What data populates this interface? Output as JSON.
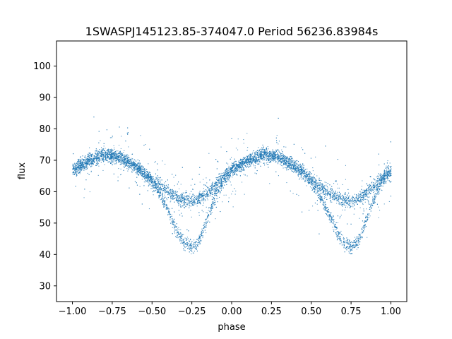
{
  "chart_data": {
    "type": "scatter",
    "title": "1SWASPJ145123.85-374047.0 Period 56236.83984s",
    "xlabel": "phase",
    "ylabel": "flux",
    "xlim": [
      -1.1,
      1.1
    ],
    "ylim": [
      25,
      108
    ],
    "xticks": [
      -1.0,
      -0.75,
      -0.5,
      -0.25,
      0.0,
      0.25,
      0.5,
      0.75,
      1.0
    ],
    "xtick_labels": [
      "−1.00",
      "−0.75",
      "−0.50",
      "−0.25",
      "0.00",
      "0.25",
      "0.50",
      "0.75",
      "1.00"
    ],
    "yticks": [
      30,
      40,
      50,
      60,
      70,
      80,
      90,
      100
    ],
    "ytick_labels": [
      "30",
      "40",
      "50",
      "60",
      "70",
      "80",
      "90",
      "100"
    ],
    "grid": false,
    "marker_color": "#1f77b4",
    "series": [
      {
        "x": [
          -1.0,
          -0.95,
          -0.9,
          -0.85,
          -0.8,
          -0.75,
          -0.7,
          -0.65,
          -0.6,
          -0.55,
          -0.5,
          -0.45,
          -0.4,
          -0.35,
          -0.3,
          -0.25,
          -0.2,
          -0.15,
          -0.1,
          -0.05,
          0.0,
          0.05,
          0.1,
          0.15,
          0.2,
          0.25,
          0.3,
          0.35,
          0.4,
          0.45,
          0.5,
          0.55,
          0.6,
          0.65,
          0.7,
          0.75,
          0.8,
          0.85,
          0.9,
          0.95,
          1.0
        ],
        "y_upper_branch": [
          67,
          68.5,
          70,
          71,
          72,
          71.5,
          71,
          69.5,
          68,
          66,
          64,
          62,
          60,
          58.5,
          57.5,
          57,
          58,
          60,
          62.5,
          65,
          67,
          68.5,
          70,
          71,
          72,
          71.5,
          71,
          69.5,
          68,
          66,
          64,
          62,
          60,
          58.5,
          57.5,
          57,
          58,
          60,
          62.5,
          65,
          67
        ],
        "y_lower_branch": [
          67,
          68.5,
          70,
          71,
          72,
          71.5,
          71,
          69.5,
          68,
          66,
          63,
          59,
          54,
          48,
          44,
          42.5,
          45,
          52,
          59,
          64,
          67,
          68.5,
          70,
          71,
          72,
          71.5,
          71,
          69.5,
          68,
          66,
          63,
          59,
          54,
          48,
          44,
          42.5,
          45,
          52,
          59,
          64,
          67
        ]
      }
    ]
  }
}
